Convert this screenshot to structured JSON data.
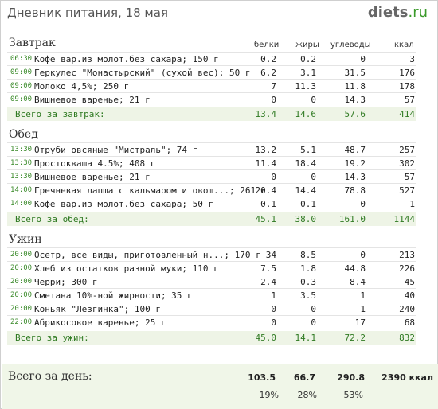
{
  "header": {
    "title": "Дневник питания, 18 мая",
    "logo_main": "diets",
    "logo_tld": ".ru"
  },
  "columns": {
    "protein": "белки",
    "fat": "жиры",
    "carbs": "углеводы",
    "kcal": "ккал"
  },
  "sections": [
    {
      "title": "Завтрак",
      "items": [
        {
          "time": "06:30",
          "name": "Кофе вар.из молот.без сахара; 150 г",
          "protein": "0.2",
          "fat": "0.2",
          "carbs": "0",
          "kcal": "3"
        },
        {
          "time": "09:00",
          "name": "Геркулес \"Монастырский\" (сухой вес); 50 г",
          "protein": "6.2",
          "fat": "3.1",
          "carbs": "31.5",
          "kcal": "176"
        },
        {
          "time": "09:00",
          "name": "Молоко 4,5%; 250 г",
          "protein": "7",
          "fat": "11.3",
          "carbs": "11.8",
          "kcal": "178"
        },
        {
          "time": "09:00",
          "name": "Вишневое варенье; 21 г",
          "protein": "0",
          "fat": "0",
          "carbs": "14.3",
          "kcal": "57"
        }
      ],
      "total": {
        "label": "Всего за завтрак:",
        "protein": "13.4",
        "fat": "14.6",
        "carbs": "57.6",
        "kcal": "414"
      }
    },
    {
      "title": "Обед",
      "items": [
        {
          "time": "13:30",
          "name": "Отруби овсяные \"Мистраль\"; 74 г",
          "protein": "13.2",
          "fat": "5.1",
          "carbs": "48.7",
          "kcal": "257"
        },
        {
          "time": "13:30",
          "name": "Простокваша 4.5%; 408 г",
          "protein": "11.4",
          "fat": "18.4",
          "carbs": "19.2",
          "kcal": "302"
        },
        {
          "time": "13:30",
          "name": "Вишневое варенье; 21 г",
          "protein": "0",
          "fat": "0",
          "carbs": "14.3",
          "kcal": "57"
        },
        {
          "time": "14:00",
          "name": "Гречневая лапша с кальмаром и овош...; 261 г",
          "protein": "20.4",
          "fat": "14.4",
          "carbs": "78.8",
          "kcal": "527"
        },
        {
          "time": "14:00",
          "name": "Кофе вар.из молот.без сахара; 50 г",
          "protein": "0.1",
          "fat": "0.1",
          "carbs": "0",
          "kcal": "1"
        }
      ],
      "total": {
        "label": "Всего за обед:",
        "protein": "45.1",
        "fat": "38.0",
        "carbs": "161.0",
        "kcal": "1144"
      }
    },
    {
      "title": "Ужин",
      "items": [
        {
          "time": "20:00",
          "name": "Осетр, все виды, приготовленный н...; 170 г",
          "protein": "34",
          "fat": "8.5",
          "carbs": "0",
          "kcal": "213"
        },
        {
          "time": "20:00",
          "name": "Хлеб из остатков разной муки; 110 г",
          "protein": "7.5",
          "fat": "1.8",
          "carbs": "44.8",
          "kcal": "226"
        },
        {
          "time": "20:00",
          "name": "Черри; 300 г",
          "protein": "2.4",
          "fat": "0.3",
          "carbs": "8.4",
          "kcal": "45"
        },
        {
          "time": "20:00",
          "name": "Сметана 10%-ной жирности; 35 г",
          "protein": "1",
          "fat": "3.5",
          "carbs": "1",
          "kcal": "40"
        },
        {
          "time": "20:00",
          "name": "Коньяк \"Лезгинка\"; 100 г",
          "protein": "0",
          "fat": "0",
          "carbs": "1",
          "kcal": "240"
        },
        {
          "time": "22:00",
          "name": "Абрикосовое варенье; 25 г",
          "protein": "0",
          "fat": "0",
          "carbs": "17",
          "kcal": "68"
        }
      ],
      "total": {
        "label": "Всего за ужин:",
        "protein": "45.0",
        "fat": "14.1",
        "carbs": "72.2",
        "kcal": "832"
      }
    }
  ],
  "day_total": {
    "label": "Всего за день:",
    "protein": "103.5",
    "fat": "66.7",
    "carbs": "290.8",
    "kcal": "2390 ккал",
    "protein_pct": "19%",
    "fat_pct": "28%",
    "carbs_pct": "53%"
  }
}
